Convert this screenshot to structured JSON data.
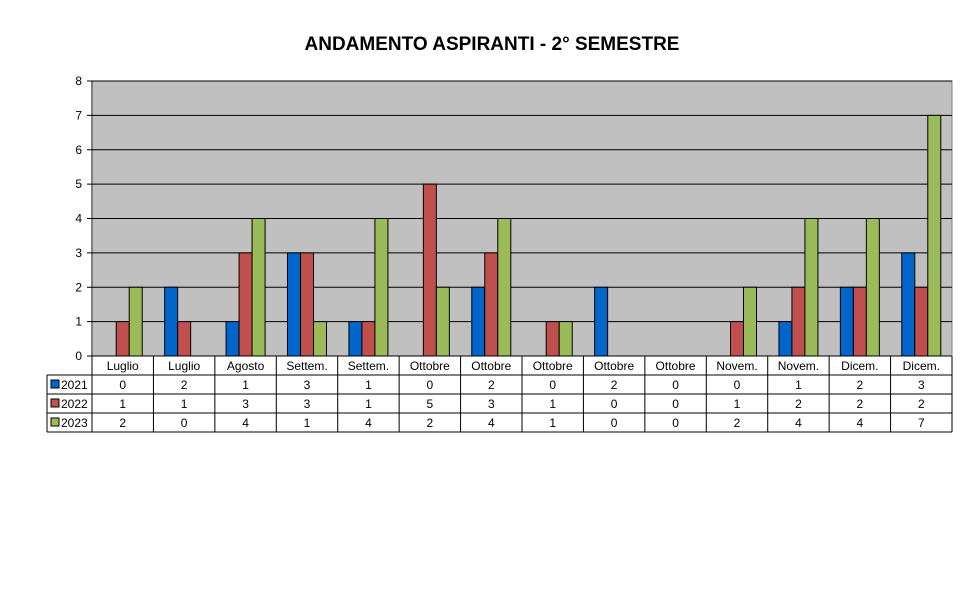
{
  "chart_data": {
    "type": "bar",
    "title": "ANDAMENTO  ASPIRANTI   -  2° SEMESTRE",
    "categories": [
      "Luglio",
      "Luglio",
      "Agosto",
      "Settem.",
      "Settem.",
      "Ottobre",
      "Ottobre",
      "Ottobre",
      "Ottobre",
      "Ottobre",
      "Novem.",
      "Novem.",
      "Dicem.",
      "Dicem."
    ],
    "series": [
      {
        "name": "2021",
        "color": "#0066CC",
        "values": [
          0,
          2,
          1,
          3,
          1,
          0,
          2,
          0,
          2,
          0,
          0,
          1,
          2,
          3
        ]
      },
      {
        "name": "2022",
        "color": "#C0504D",
        "values": [
          1,
          1,
          3,
          3,
          1,
          5,
          3,
          1,
          0,
          0,
          1,
          2,
          2,
          2
        ]
      },
      {
        "name": "2023",
        "color": "#9BBB59",
        "values": [
          2,
          0,
          4,
          1,
          4,
          2,
          4,
          1,
          0,
          0,
          2,
          4,
          4,
          7
        ]
      }
    ],
    "ylim": [
      0,
      8
    ],
    "yticks": [
      0,
      1,
      2,
      3,
      4,
      5,
      6,
      7,
      8
    ],
    "grid": true,
    "plot_background": "#C0C0C0",
    "legend": "data-table"
  }
}
